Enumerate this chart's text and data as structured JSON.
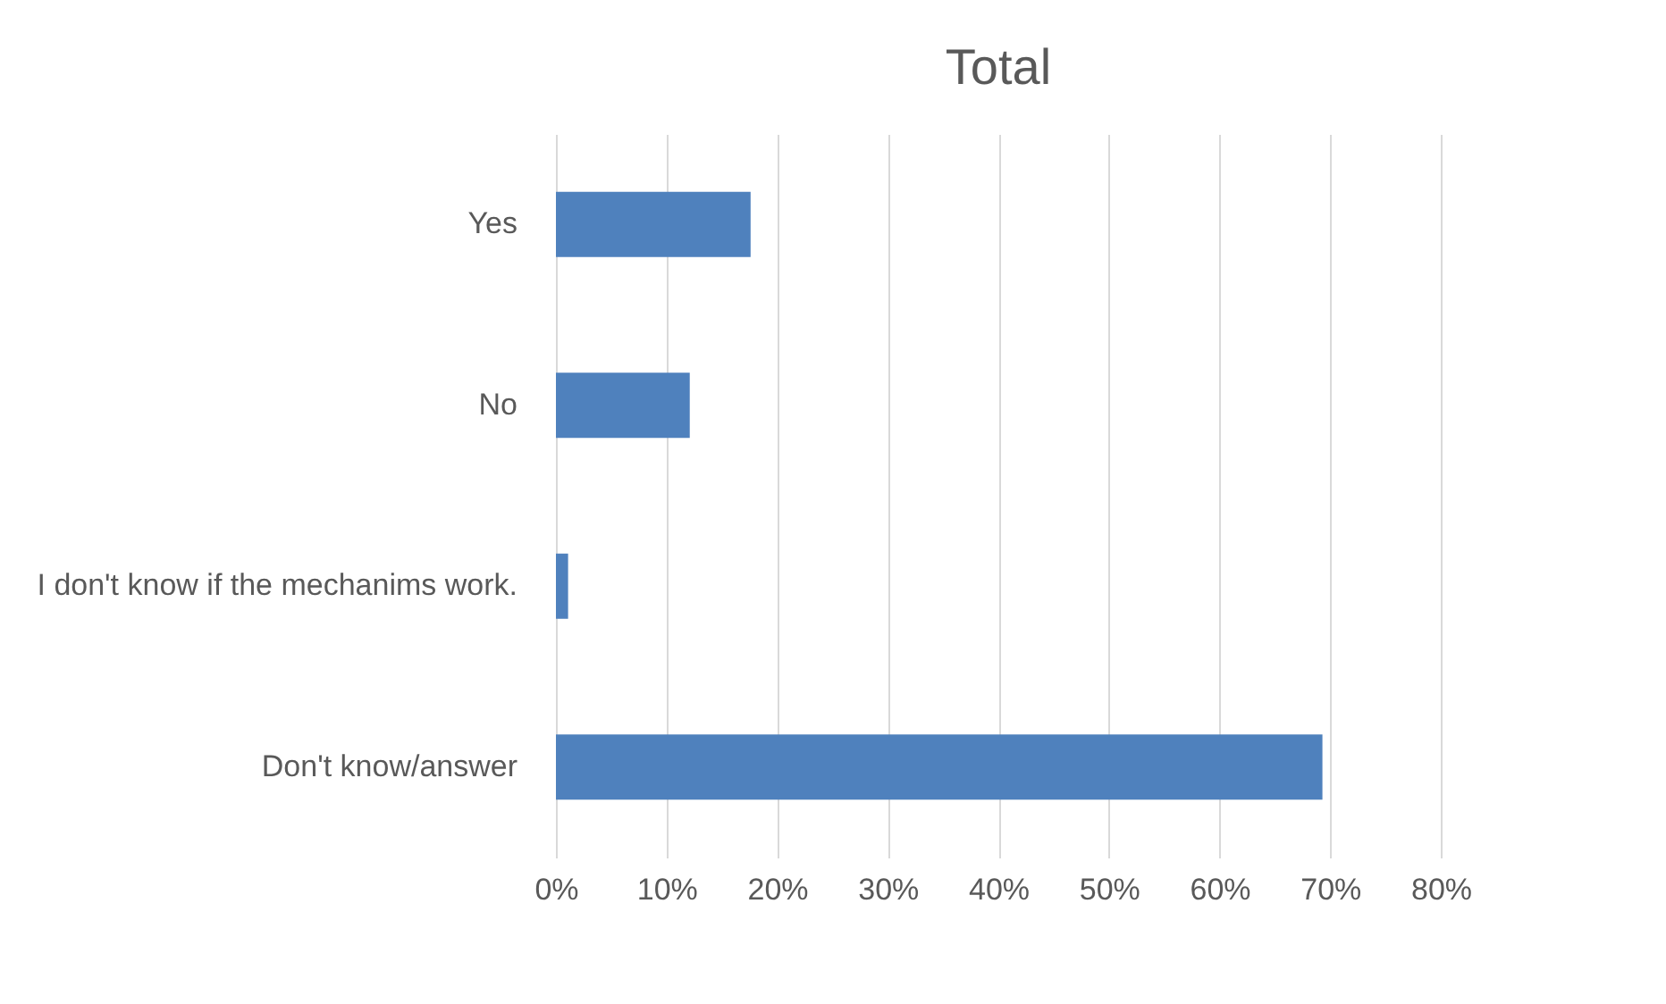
{
  "chart_data": {
    "type": "bar",
    "orientation": "horizontal",
    "title": "Total",
    "categories": [
      "Yes",
      "No",
      "I don't know if the mechanims work.",
      "Don't know/answer"
    ],
    "values": [
      17.6,
      12.1,
      1.1,
      69.3
    ],
    "color": "#4f81bd",
    "xlim": [
      0,
      80
    ],
    "xticks": [
      {
        "value": 0,
        "label": "0%"
      },
      {
        "value": 10,
        "label": "10%"
      },
      {
        "value": 20,
        "label": "20%"
      },
      {
        "value": 30,
        "label": "30%"
      },
      {
        "value": 40,
        "label": "40%"
      },
      {
        "value": 50,
        "label": "50%"
      },
      {
        "value": 60,
        "label": "60%"
      },
      {
        "value": 70,
        "label": "70%"
      },
      {
        "value": 80,
        "label": "80%"
      }
    ],
    "grid": "x"
  }
}
